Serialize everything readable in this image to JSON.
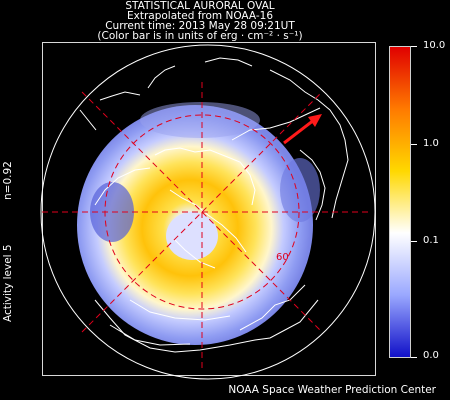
{
  "header": {
    "title": "STATISTICAL AURORAL OVAL",
    "source_line": "Extrapolated from NOAA-16",
    "time_line": "Current time: 2013 May 28 09:21UT",
    "units_line": "(Color bar is in units of erg · cm⁻² · s⁻¹)"
  },
  "sidebar": {
    "n_value": "n=0.92",
    "activity": "Activity level 5"
  },
  "map": {
    "latitude_label": "60",
    "grid_color": "#e0001c",
    "coast_color": "#ffffff",
    "sun_arrow_color": "#ff1a1a"
  },
  "colorbar": {
    "labels": [
      "10.0",
      "1.0",
      "0.1",
      "0.0"
    ],
    "stops": [
      "#e00000",
      "#ff7a00",
      "#ffd800",
      "#ffffff",
      "#9aa8ff",
      "#1010c8"
    ]
  },
  "footer": {
    "credit": "NOAA Space Weather Prediction Center"
  }
}
